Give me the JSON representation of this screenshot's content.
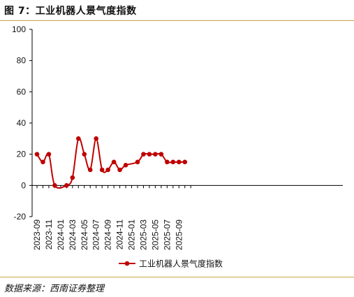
{
  "figure": {
    "title": "图 7：工业机器人景气度指数",
    "source": "数据来源：西南证券整理"
  },
  "colors": {
    "series": "#c00000",
    "rule": "#c9a24a",
    "axis": "#000000"
  },
  "chart_data": {
    "type": "line",
    "title": "",
    "xlabel": "",
    "ylabel": "",
    "ylim": [
      -20,
      100
    ],
    "yticks": [
      -20,
      0,
      20,
      40,
      60,
      80,
      100
    ],
    "xtick_labels": [
      "2023-09",
      "2023-11",
      "2024-01",
      "2024-03",
      "2024-05",
      "2024-07",
      "2024-09",
      "2024-11",
      "2025-01",
      "2025-03",
      "2025-05",
      "2025-07",
      "2025-09"
    ],
    "grid": false,
    "smooth": true,
    "legend_position": "bottom",
    "x": [
      "2023-09",
      "2023-10",
      "2023-11",
      "2023-12",
      "2024-02",
      "2024-03",
      "2024-04",
      "2024-05",
      "2024-06",
      "2024-07",
      "2024-08",
      "2024-09",
      "2024-10",
      "2024-11",
      "2024-12",
      "2025-02",
      "2025-03",
      "2025-04",
      "2025-05",
      "2025-06",
      "2025-07",
      "2025-08",
      "2025-09",
      "2025-10"
    ],
    "series": [
      {
        "name": "工业机器人景气度指数",
        "values": [
          20,
          15,
          20,
          0,
          0,
          5,
          30,
          20,
          10,
          30,
          10,
          10,
          15,
          10,
          13,
          15,
          20,
          20,
          20,
          20,
          15,
          15,
          15,
          15
        ]
      }
    ]
  }
}
